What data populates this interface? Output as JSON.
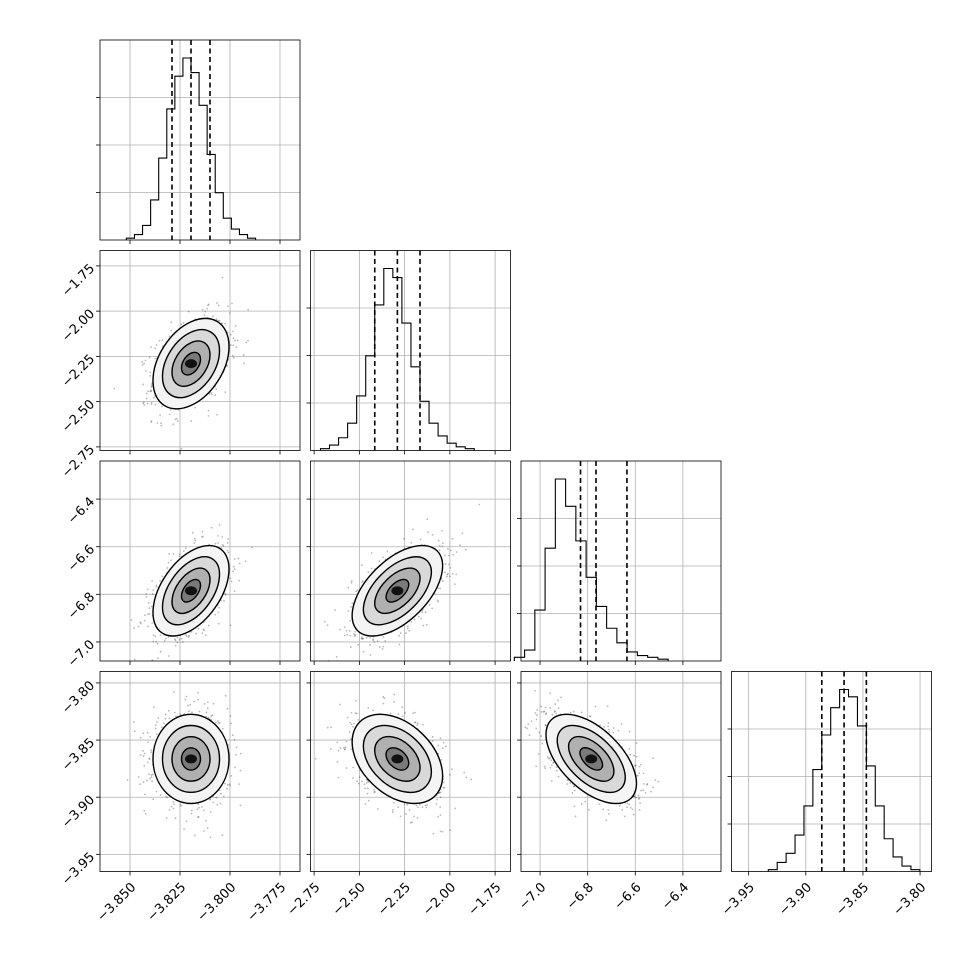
{
  "colors": {
    "ink": "#000000",
    "grid": "#b0b0b0",
    "scatter": "#000000",
    "background": "#ffffff"
  },
  "chart_data": {
    "type": "corner",
    "parameters": 4,
    "ranges": [
      [
        -3.865,
        -3.765
      ],
      [
        -2.77,
        -1.665
      ],
      [
        -7.08,
        -6.24
      ],
      [
        -3.965,
        -3.79
      ]
    ],
    "ticks": [
      [
        -3.85,
        -3.825,
        -3.8,
        -3.775
      ],
      [
        -2.75,
        -2.5,
        -2.25,
        -2.0,
        -1.75
      ],
      [
        -7.0,
        -6.8,
        -6.6,
        -6.4
      ],
      [
        -3.95,
        -3.9,
        -3.85,
        -3.8
      ]
    ],
    "tick_labels": [
      [
        "−3.850",
        "−3.825",
        "−3.800",
        "−3.775"
      ],
      [
        "−2.75",
        "−2.50",
        "−2.25",
        "−2.00",
        "−1.75"
      ],
      [
        "−7.0",
        "−6.8",
        "−6.6",
        "−6.4"
      ],
      [
        "−3.95",
        "−3.90",
        "−3.85",
        "−3.80"
      ]
    ],
    "means": [
      -3.8195,
      -2.29,
      -6.785,
      -3.8665
    ],
    "std_devs": [
      0.0095,
      0.125,
      0.095,
      0.0195
    ],
    "quantiles": [
      [
        -3.829,
        -3.8195,
        -3.81
      ],
      [
        -2.415,
        -2.29,
        -2.165
      ],
      [
        -6.83,
        -6.765,
        -6.635
      ],
      [
        -3.886,
        -3.8665,
        -3.847
      ]
    ],
    "histograms": [
      [
        1,
        3,
        8,
        22,
        45,
        72,
        90,
        100,
        92,
        74,
        47,
        26,
        12,
        6,
        3,
        1
      ],
      [
        1,
        3,
        7,
        15,
        30,
        52,
        80,
        100,
        95,
        70,
        46,
        27,
        15,
        8,
        4,
        2,
        1
      ],
      [
        2,
        6,
        28,
        62,
        100,
        85,
        66,
        46,
        30,
        18,
        10,
        5,
        3,
        2,
        1
      ],
      [
        1,
        5,
        10,
        20,
        36,
        56,
        75,
        90,
        100,
        96,
        80,
        58,
        36,
        18,
        8,
        3,
        1
      ]
    ],
    "correlations": {
      "1-0": 0.38,
      "2-0": 0.48,
      "2-1": 0.55,
      "3-0": 0.0,
      "3-1": -0.38,
      "3-2": -0.55
    },
    "contour_sigmas": [
      0.5,
      1.0,
      1.5,
      2.0
    ],
    "grid": true
  }
}
